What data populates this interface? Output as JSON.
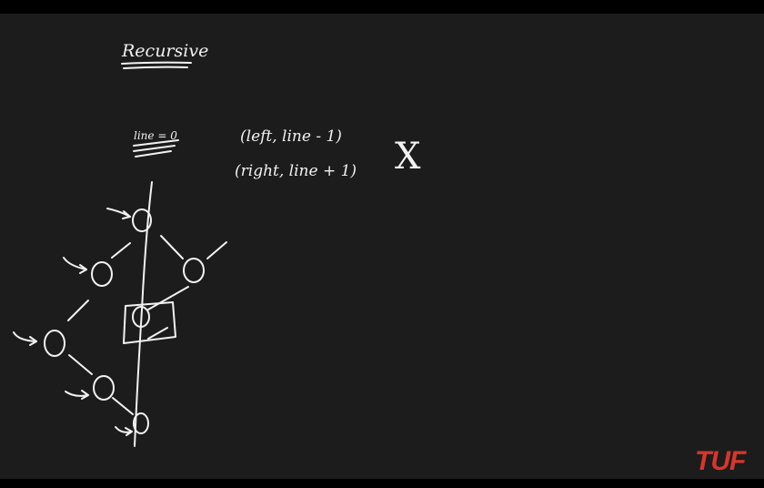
{
  "board": {
    "title": "Recursive",
    "init_label": "line = 0",
    "call_left": "(left, line - 1)",
    "call_right": "(right, line + 1)",
    "cross_mark": "X"
  },
  "brand": {
    "logo_text": "TUF",
    "color": "#d7362b"
  },
  "colors": {
    "background": "#1c1c1c",
    "ink": "#f2f2f2",
    "letterbox": "#000000"
  }
}
